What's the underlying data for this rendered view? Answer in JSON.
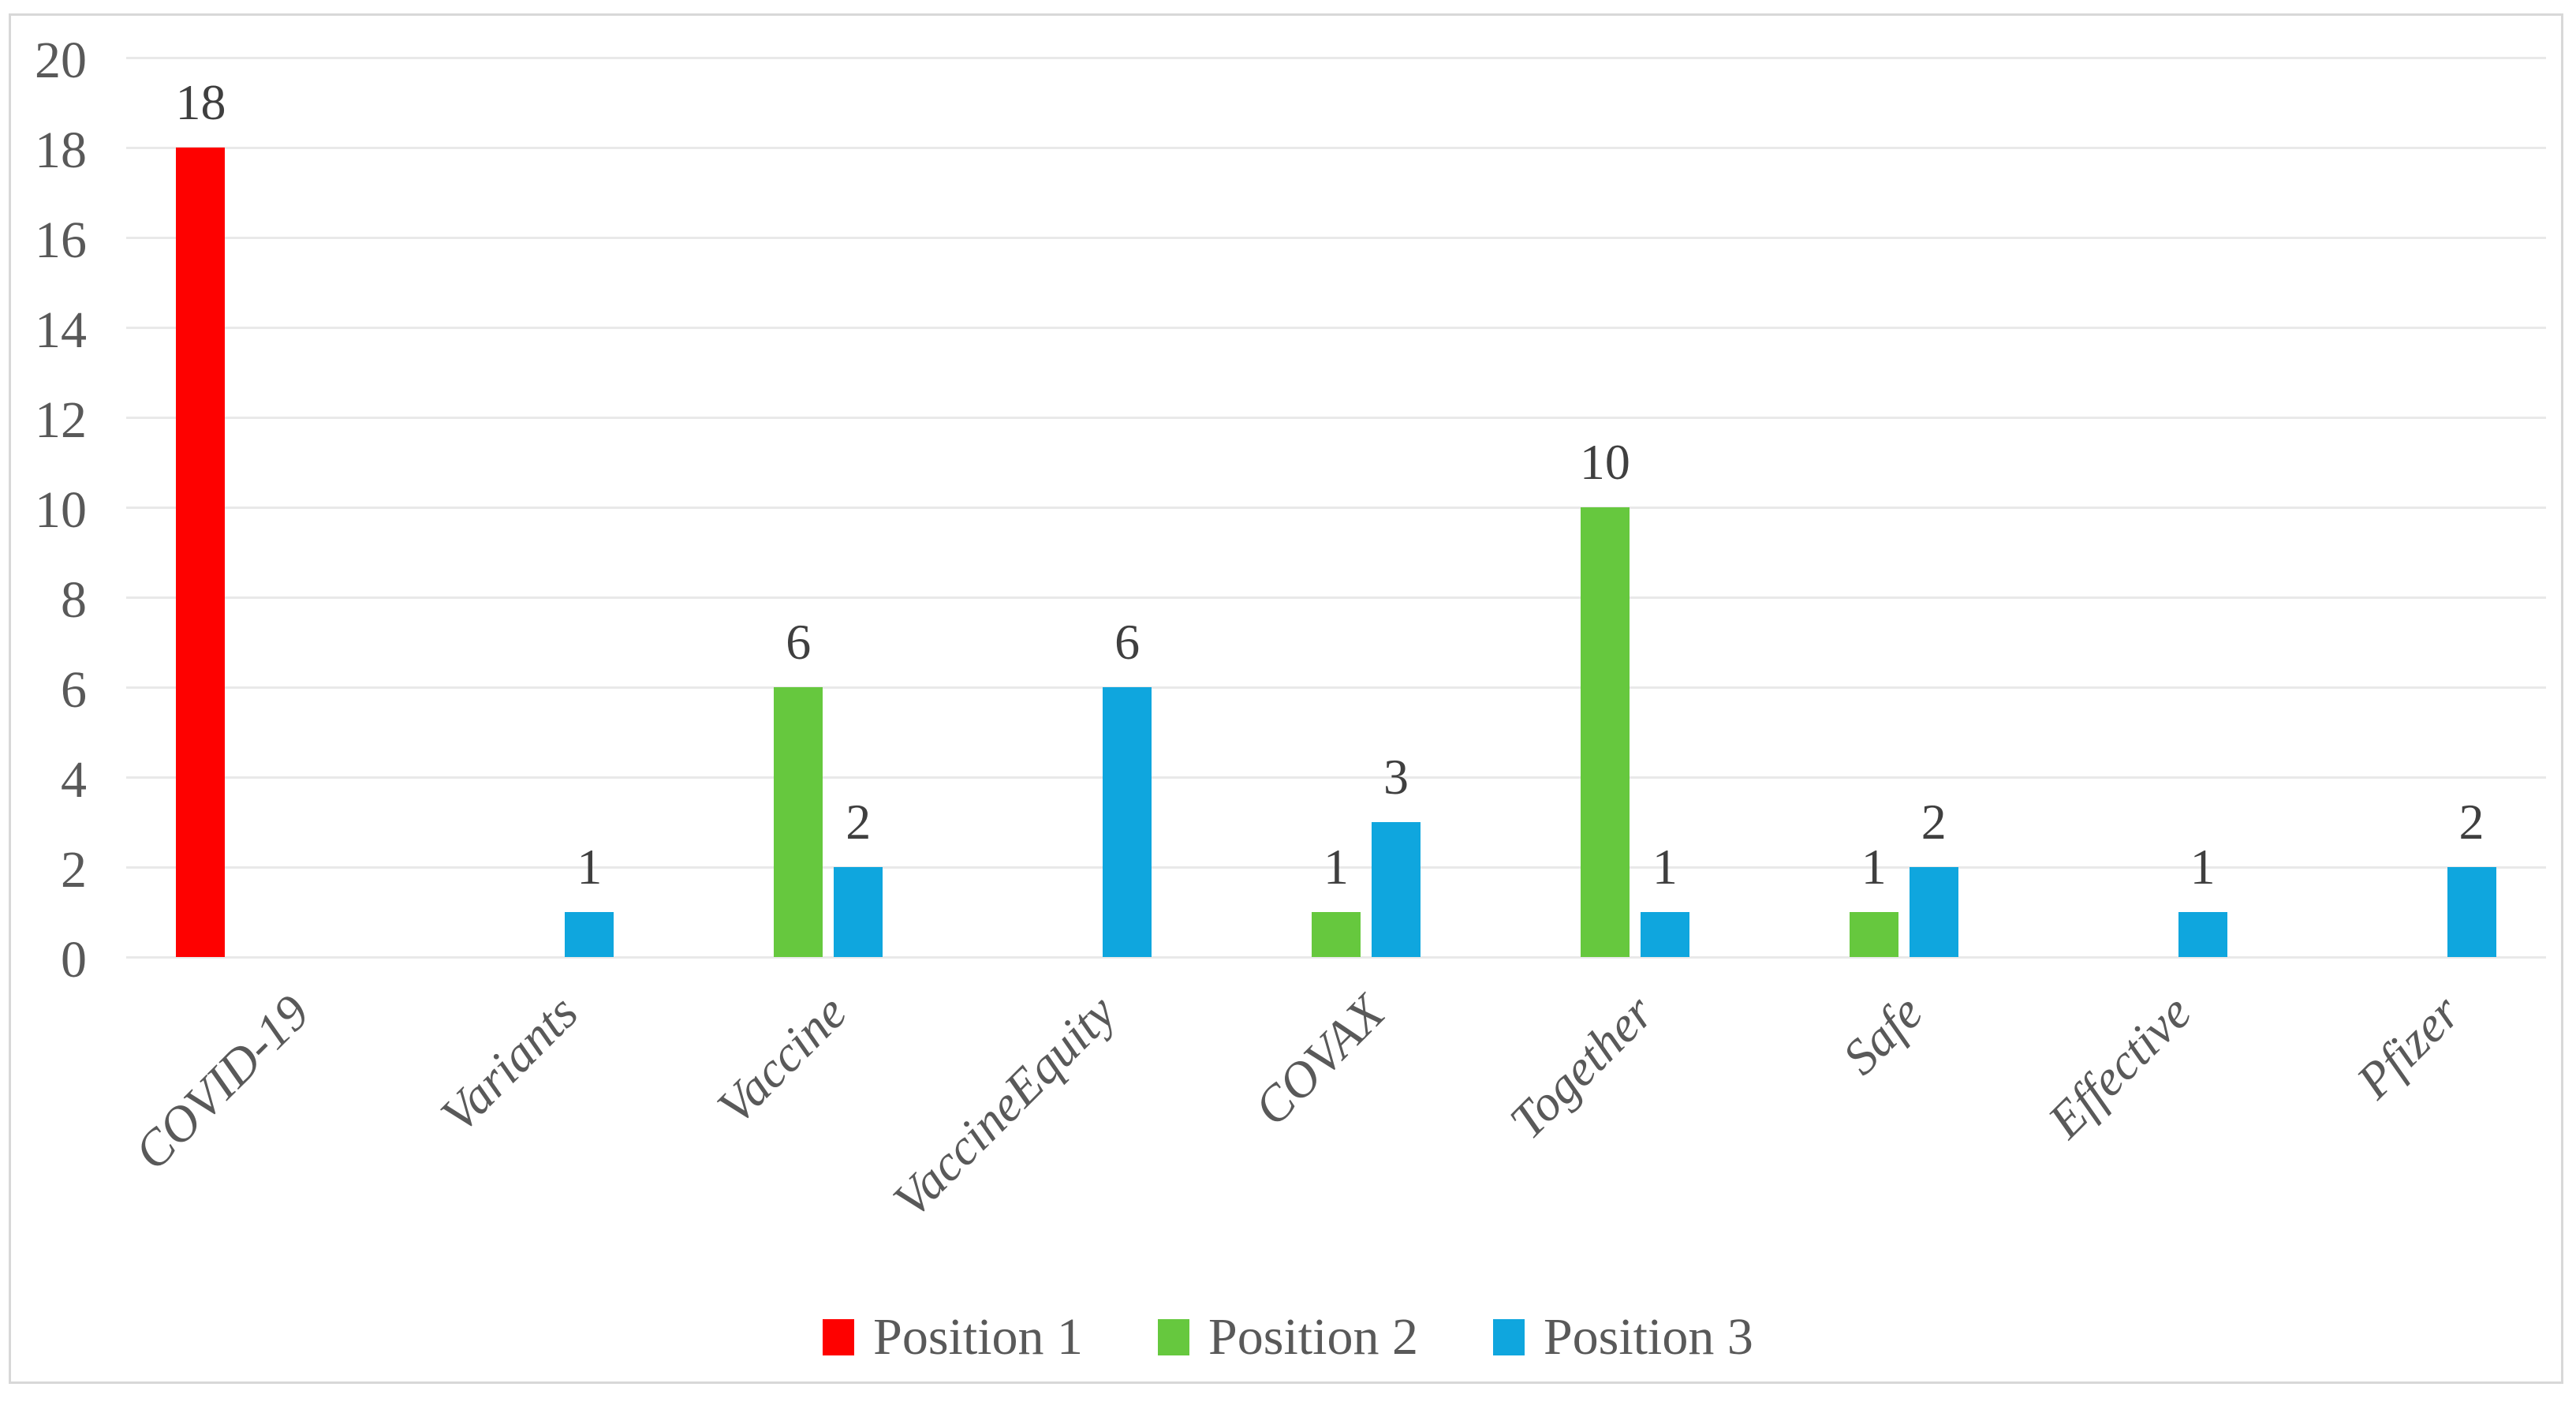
{
  "figure": {
    "background": "#FFFFFF",
    "border_color": "#D8D8D8"
  },
  "chart_data": {
    "type": "bar",
    "title": "",
    "xlabel": "",
    "ylabel": "",
    "categories": [
      "COVID-19",
      "Variants",
      "Vaccine",
      "VaccineEquity",
      "COVAX",
      "Together",
      "Safe",
      "Effective",
      "Pfizer"
    ],
    "series": [
      {
        "name": "Position 1",
        "color": "#FE0100",
        "values": [
          18,
          0,
          0,
          0,
          0,
          0,
          0,
          0,
          0
        ]
      },
      {
        "name": "Position 2",
        "color": "#66C83E",
        "values": [
          0,
          0,
          6,
          0,
          1,
          10,
          1,
          0,
          0
        ]
      },
      {
        "name": "Position 3",
        "color": "#0FA6DE",
        "values": [
          0,
          1,
          2,
          6,
          3,
          1,
          2,
          1,
          2
        ]
      }
    ],
    "ylim": [
      0,
      20
    ],
    "yticks": [
      0,
      2,
      4,
      6,
      8,
      10,
      12,
      14,
      16,
      18,
      20
    ],
    "grid": true,
    "grid_color": "#E9E9E9",
    "axis_text_color": "#595959",
    "data_label_color": "#3F3F3F",
    "data_labels": true,
    "legend_position": "bottom"
  }
}
